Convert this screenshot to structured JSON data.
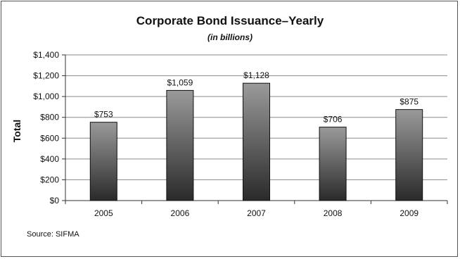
{
  "chart_data": {
    "type": "bar",
    "title": "Corporate Bond Issuance–Yearly",
    "subtitle": "(in billions)",
    "xlabel": "",
    "ylabel": "Total",
    "categories": [
      "2005",
      "2006",
      "2007",
      "2008",
      "2009"
    ],
    "values": [
      753,
      1059,
      1128,
      706,
      875
    ],
    "data_labels": [
      "$753",
      "$1,059",
      "$1,128",
      "$706",
      "$875"
    ],
    "ylim": [
      0,
      1400
    ],
    "yticks": [
      0,
      200,
      400,
      600,
      800,
      1000,
      1200,
      1400
    ],
    "ytick_labels": [
      "$0",
      "$200",
      "$400",
      "$600",
      "$800",
      "$1,000",
      "$1,200",
      "$1,400"
    ],
    "grid": true,
    "legend": "none",
    "bar_color_top": "#9a9a9a",
    "bar_color_bottom": "#2a2a2a"
  },
  "footer": {
    "source": "Source: SIFMA"
  }
}
